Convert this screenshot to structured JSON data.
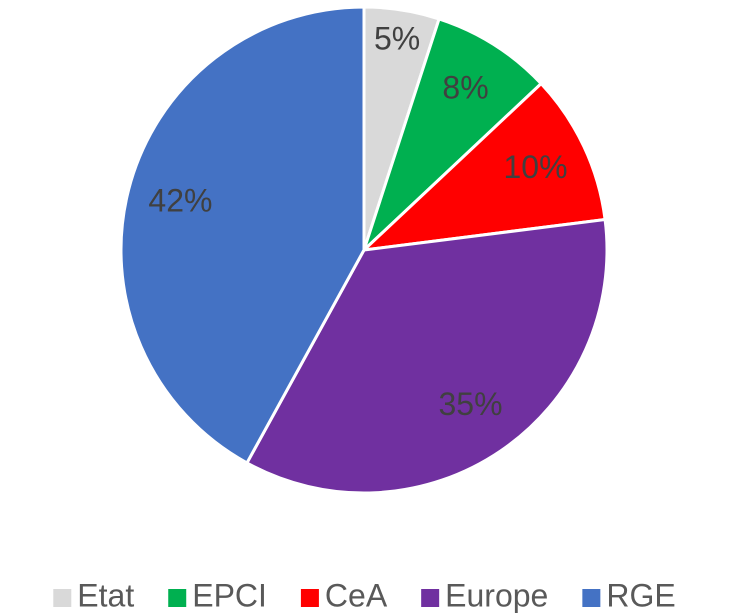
{
  "chart_data": {
    "type": "pie",
    "categories": [
      "Etat",
      "EPCI",
      "CeA",
      "Europe",
      "RGE"
    ],
    "values": [
      5,
      8,
      10,
      35,
      42
    ],
    "value_labels": [
      "5%",
      "8%",
      "10%",
      "35%",
      "42%"
    ],
    "colors": [
      "#d9d9d9",
      "#00b050",
      "#ff0000",
      "#7030a0",
      "#4472c4"
    ],
    "legend": "bottom"
  }
}
